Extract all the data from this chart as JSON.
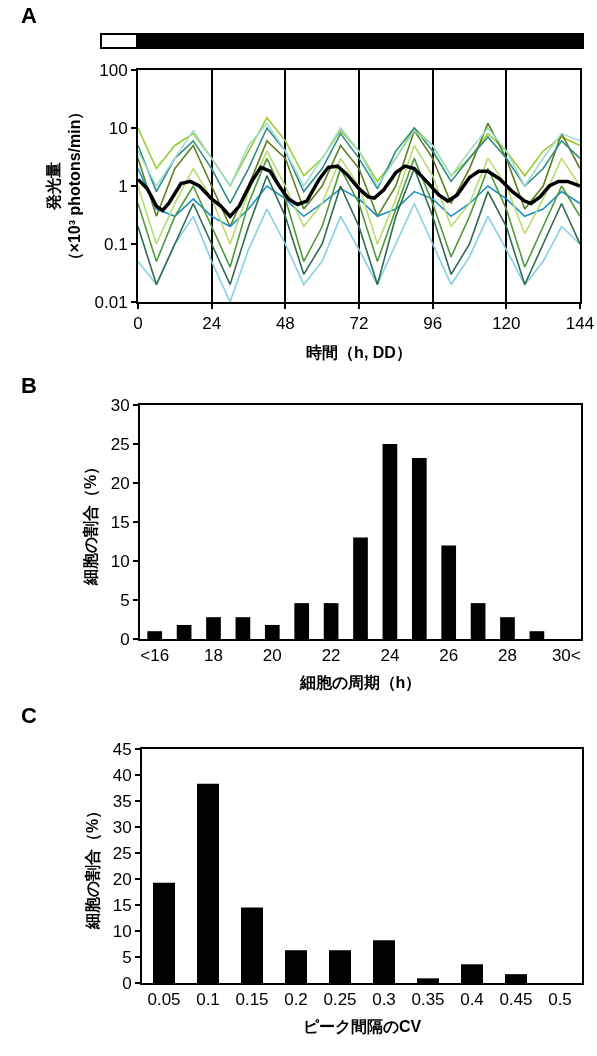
{
  "chart_data": [
    {
      "type": "line",
      "title": "A",
      "xlabel": "時間（h, DD）",
      "ylabel": "発光量（×10³ photons/min）",
      "log": "y",
      "grid": "x",
      "xlim": [
        0,
        144
      ],
      "xticks": [
        0,
        24,
        48,
        72,
        96,
        120,
        144
      ],
      "ylim": [
        0.01,
        100
      ],
      "yticks": [
        0.01,
        0.1,
        1,
        10,
        100
      ],
      "x": [
        0,
        6,
        12,
        18,
        24,
        30,
        36,
        42,
        48,
        54,
        60,
        66,
        72,
        78,
        84,
        90,
        96,
        102,
        108,
        114,
        120,
        126,
        132,
        138,
        144
      ],
      "series": [
        {
          "color": "#9acd32",
          "values": [
            10,
            2,
            5,
            8,
            3,
            1,
            4,
            15,
            6,
            1.5,
            3,
            9,
            4,
            1.2,
            3,
            10,
            5,
            1.5,
            3,
            8,
            4,
            1.5,
            4,
            7,
            5
          ]
        },
        {
          "color": "#5b7f1c",
          "values": [
            3,
            0.3,
            2,
            5,
            1,
            0.2,
            1,
            6,
            3,
            0.4,
            1,
            5,
            2,
            0.3,
            1,
            9,
            3,
            0.5,
            2,
            12,
            3,
            0.4,
            1,
            8,
            2
          ]
        },
        {
          "color": "#2f8c84",
          "values": [
            5,
            0.8,
            3,
            6,
            2,
            0.5,
            2,
            10,
            4,
            0.8,
            2,
            8,
            3,
            0.9,
            4,
            10,
            4,
            1.2,
            3,
            7,
            3,
            1,
            2,
            6,
            3
          ]
        },
        {
          "color": "#1a8fc9",
          "values": [
            2,
            0.4,
            0.3,
            0.6,
            0.3,
            0.2,
            0.4,
            1,
            0.6,
            0.3,
            0.5,
            0.9,
            0.6,
            0.3,
            0.4,
            0.8,
            0.6,
            0.3,
            0.5,
            1,
            0.6,
            0.3,
            0.4,
            0.8,
            0.5
          ]
        },
        {
          "color": "#87cfe6",
          "values": [
            0.05,
            0.02,
            0.1,
            0.3,
            0.05,
            0.01,
            0.08,
            0.4,
            0.1,
            0.02,
            0.05,
            0.3,
            0.08,
            0.02,
            0.1,
            0.5,
            0.1,
            0.02,
            0.06,
            0.3,
            0.08,
            0.02,
            0.05,
            0.2,
            0.1
          ]
        },
        {
          "color": "#b8dc70",
          "values": [
            1,
            0.1,
            0.5,
            2,
            0.6,
            0.1,
            0.8,
            4,
            1,
            0.2,
            0.5,
            3,
            1,
            0.1,
            0.6,
            5,
            1.5,
            0.2,
            0.5,
            3,
            1,
            0.15,
            0.6,
            3,
            1
          ]
        },
        {
          "color": "#2d6b4f",
          "values": [
            0.2,
            0.02,
            0.1,
            0.5,
            0.1,
            0.02,
            0.2,
            1.5,
            0.3,
            0.03,
            0.1,
            1,
            0.2,
            0.02,
            0.3,
            2,
            0.3,
            0.03,
            0.1,
            0.8,
            0.2,
            0.02,
            0.1,
            0.5,
            0.1
          ]
        },
        {
          "color": "#9edccf",
          "values": [
            4,
            1,
            3,
            9,
            3,
            1,
            5,
            12,
            4,
            1,
            3,
            10,
            4,
            1,
            3,
            9,
            5,
            1.5,
            4,
            10,
            4,
            1,
            3,
            8,
            6
          ]
        },
        {
          "color": "#4f9a3a",
          "values": [
            0.5,
            0.05,
            0.3,
            1,
            0.2,
            0.04,
            0.5,
            3,
            0.6,
            0.05,
            0.2,
            2,
            0.5,
            0.05,
            0.4,
            3,
            0.5,
            0.06,
            0.3,
            2,
            0.4,
            0.04,
            0.2,
            1,
            0.3
          ]
        },
        {
          "color": "#000000",
          "x": [
            0,
            3,
            6,
            8,
            10,
            14,
            17,
            20,
            24,
            27,
            30,
            33,
            37,
            40,
            43,
            46,
            49,
            52,
            55,
            59,
            62,
            65,
            68,
            72,
            75,
            77,
            80,
            84,
            87,
            90,
            94,
            98,
            101,
            104,
            108,
            111,
            114,
            118,
            122,
            126,
            128,
            131,
            134,
            137,
            140,
            144
          ],
          "values": [
            1.3,
            0.9,
            0.45,
            0.38,
            0.5,
            1.1,
            1.2,
            1,
            0.6,
            0.45,
            0.3,
            0.45,
            1.2,
            2.1,
            1.8,
            1,
            0.6,
            0.48,
            0.55,
            1.3,
            2.1,
            2.2,
            1.6,
            0.9,
            0.65,
            0.62,
            0.85,
            1.7,
            2.2,
            2,
            1.2,
            0.7,
            0.55,
            0.7,
            1.4,
            1.8,
            1.8,
            1.3,
            0.8,
            0.55,
            0.5,
            0.65,
            1,
            1.2,
            1.2,
            1
          ]
        }
      ]
    },
    {
      "type": "bar",
      "title": "B",
      "xlabel": "細胞の周期（h）",
      "ylabel": "細胞の割合（%）",
      "color": "#000000",
      "ylim": [
        0,
        30
      ],
      "yticks": [
        0,
        5,
        10,
        15,
        20,
        25,
        30
      ],
      "categories": [
        "<16",
        null,
        "18",
        null,
        "20",
        null,
        "22",
        null,
        "24",
        null,
        "26",
        null,
        "28",
        null,
        "30<"
      ],
      "values": [
        1,
        1.8,
        2.8,
        2.8,
        1.8,
        4.6,
        4.6,
        13,
        25,
        23.2,
        12,
        4.6,
        2.8,
        1,
        0
      ]
    },
    {
      "type": "bar",
      "title": "C",
      "xlabel": "ピーク間隔のCV",
      "ylabel": "細胞の割合（%）",
      "color": "#000000",
      "ylim": [
        0,
        45
      ],
      "yticks": [
        0,
        5,
        10,
        15,
        20,
        25,
        30,
        35,
        40,
        45
      ],
      "categories": [
        "0.05",
        "0.1",
        "0.15",
        "0.2",
        "0.25",
        "0.3",
        "0.35",
        "0.4",
        "0.45",
        "0.5"
      ],
      "values": [
        19.3,
        38.3,
        14.5,
        6.3,
        6.3,
        8.2,
        0.9,
        3.6,
        1.7,
        0
      ]
    }
  ]
}
